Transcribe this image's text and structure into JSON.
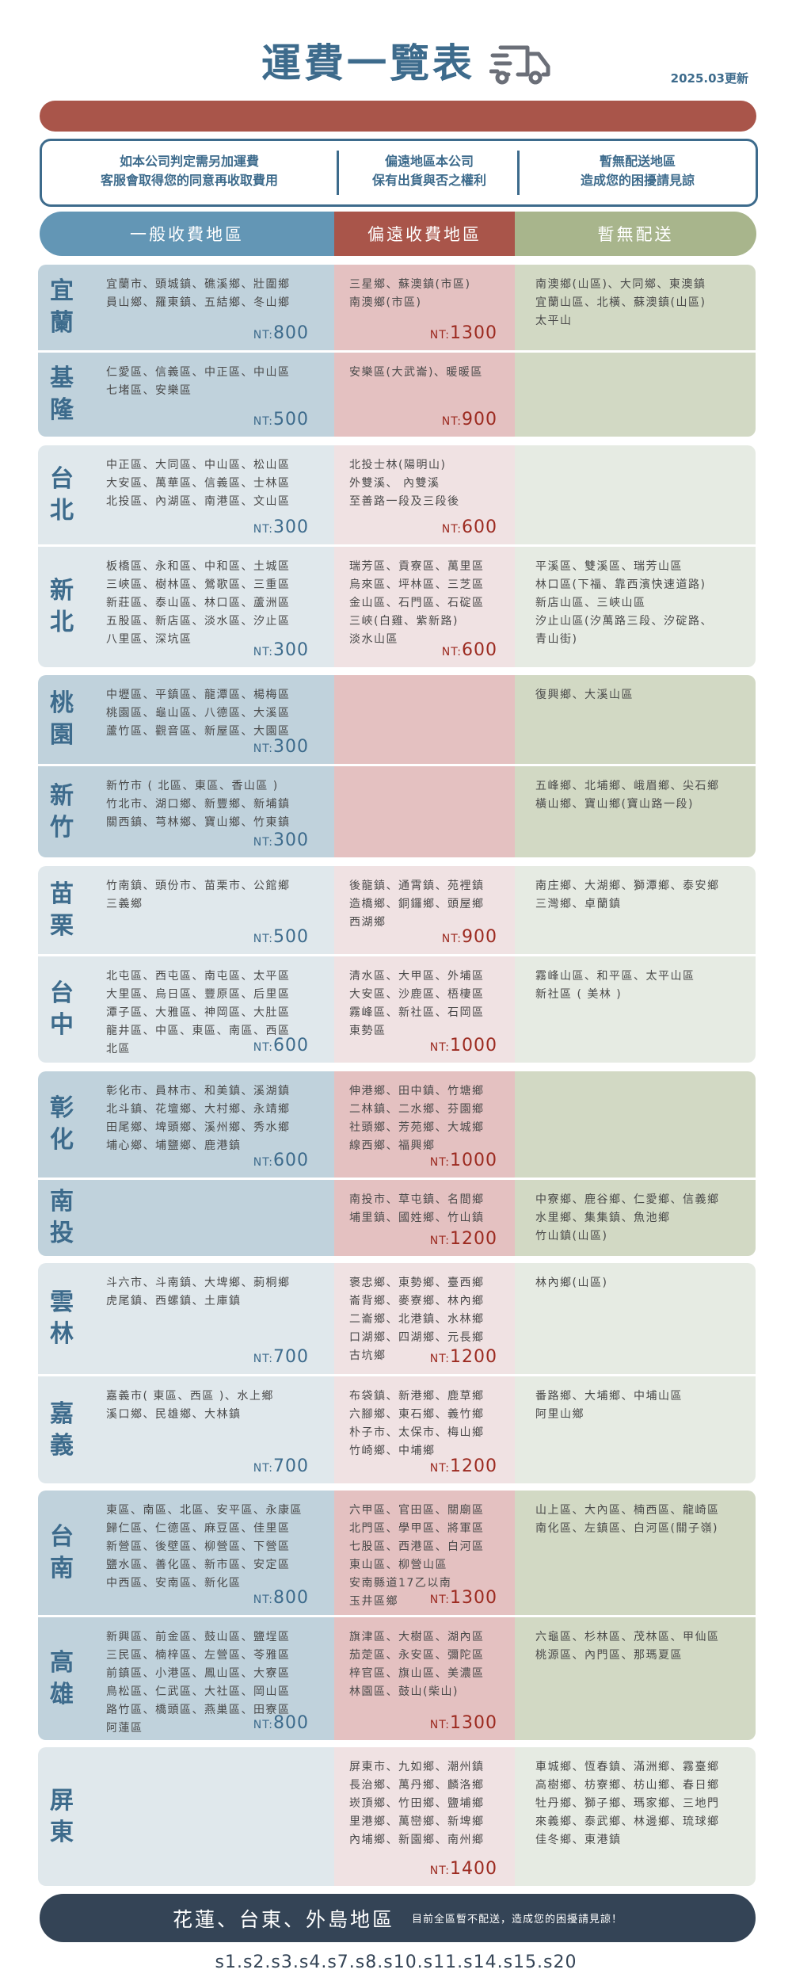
{
  "page": {
    "title": "運費一覽表",
    "truck_icon": "delivery-truck-icon",
    "updated": "2025.03更新"
  },
  "notices": [
    [
      "如本公司判定需另加運費",
      "客服會取得您的同意再收取費用"
    ],
    [
      "偏遠地區本公司",
      "保有出貨與否之權利"
    ],
    [
      "暫無配送地區",
      "造成您的困擾請見諒"
    ]
  ],
  "headers": {
    "general": "一般收費地區",
    "remote": "偏遠收費地區",
    "none": "暫無配送"
  },
  "currency_prefix": "NT:",
  "colors": {
    "title": "#3d6b8c",
    "accent_red": "#a9554a",
    "general": "#6396b5",
    "remote": "#a9554a",
    "none": "#a8b58c",
    "footer": "#344456"
  },
  "groups": [
    {
      "rows": [
        {
          "name": "宜蘭",
          "general": {
            "lines": [
              "宜蘭市、頭城鎮、礁溪鄉、壯圍鄉",
              "員山鄉、羅東鎮、五結鄉、冬山鄉"
            ],
            "price": "800"
          },
          "remote": {
            "lines": [
              "三星鄉、蘇澳鎮(市區)",
              "南澳鄉(市區)"
            ],
            "price": "1300"
          },
          "none": {
            "lines": [
              "南澳鄉(山區)、大同鄉、東澳鎮",
              "宜蘭山區、北橫、蘇澳鎮(山區)",
              "太平山"
            ]
          }
        },
        {
          "name": "基隆",
          "general": {
            "lines": [
              "仁愛區、信義區、中正區、中山區",
              "七堵區、安樂區"
            ],
            "price": "500"
          },
          "remote": {
            "lines": [
              "安樂區(大武崙)、暖暖區"
            ],
            "price": "900"
          },
          "none": {
            "lines": []
          }
        }
      ]
    },
    {
      "rows": [
        {
          "name": "台北",
          "general": {
            "lines": [
              "中正區、大同區、中山區、松山區",
              "大安區、萬華區、信義區、士林區",
              "北投區、內湖區、南港區、文山區"
            ],
            "price": "300"
          },
          "remote": {
            "lines": [
              "北投士林(陽明山)",
              "外雙溪、 內雙溪",
              "至善路一段及三段後"
            ],
            "price": "600"
          },
          "none": {
            "lines": []
          }
        },
        {
          "name": "新北",
          "general": {
            "lines": [
              "板橋區、永和區、中和區、土城區",
              "三峽區、樹林區、鶯歌區、三重區",
              "新莊區、泰山區、林口區、蘆洲區",
              "五股區、新店區、淡水區、汐止區",
              "八里區、深坑區"
            ],
            "price": "300"
          },
          "remote": {
            "lines": [
              "瑞芳區、貢寮區、萬里區",
              "烏來區、坪林區、三芝區",
              "金山區、石門區、石碇區",
              "三峽(白雞、紫新路)",
              "淡水山區"
            ],
            "price": "600"
          },
          "none": {
            "lines": [
              "平溪區、雙溪區、瑞芳山區",
              "林口區(下福、靠西濱快速道路)",
              "新店山區、三峽山區",
              "汐止山區(汐萬路三段、汐碇路、",
              "青山街)"
            ]
          }
        }
      ]
    },
    {
      "rows": [
        {
          "name": "桃園",
          "general": {
            "lines": [
              "中壢區、平鎮區、龍潭區、楊梅區",
              "桃園區、龜山區、八德區、大溪區",
              "蘆竹區、觀音區、新屋區、大園區"
            ],
            "price": "300"
          },
          "remote": {
            "lines": []
          },
          "none": {
            "lines": [
              "復興鄉、大溪山區"
            ]
          }
        },
        {
          "name": "新竹",
          "general": {
            "lines": [
              "新竹市 ( 北區、東區、香山區 )",
              "竹北市、湖口鄉、新豐鄉、新埔鎮",
              "關西鎮、芎林鄉、寶山鄉、竹東鎮"
            ],
            "price": "300"
          },
          "remote": {
            "lines": []
          },
          "none": {
            "lines": [
              "五峰鄉、北埔鄉、峨眉鄉、尖石鄉",
              "橫山鄉、寶山鄉(寶山路一段)"
            ]
          }
        }
      ]
    },
    {
      "rows": [
        {
          "name": "苗栗",
          "general": {
            "lines": [
              "竹南鎮、頭份市、苗栗市、公館鄉",
              "三義鄉"
            ],
            "price": "500"
          },
          "remote": {
            "lines": [
              "後龍鎮、通霄鎮、苑裡鎮",
              "造橋鄉、銅鑼鄉、頭屋鄉",
              "西湖鄉"
            ],
            "price": "900"
          },
          "none": {
            "lines": [
              "南庄鄉、大湖鄉、獅潭鄉、泰安鄉",
              "三灣鄉、卓蘭鎮"
            ]
          }
        },
        {
          "name": "台中",
          "general": {
            "lines": [
              "北屯區、西屯區、南屯區、太平區",
              "大里區、烏日區、豐原區、后里區",
              "潭子區、大雅區、神岡區、大肚區",
              "龍井區、中區、東區、南區、西區",
              "北區"
            ],
            "price": "600"
          },
          "remote": {
            "lines": [
              "清水區、大甲區、外埔區",
              "大安區、沙鹿區、梧棲區",
              "霧峰區、新社區、石岡區",
              "東勢區"
            ],
            "price": "1000"
          },
          "none": {
            "lines": [
              "霧峰山區、和平區、太平山區",
              "新社區 ( 美林 )"
            ]
          }
        }
      ]
    },
    {
      "rows": [
        {
          "name": "彰化",
          "general": {
            "lines": [
              "彰化市、員林市、和美鎮、溪湖鎮",
              "北斗鎮、花壇鄉、大村鄉、永靖鄉",
              "田尾鄉、埤頭鄉、溪州鄉、秀水鄉",
              "埔心鄉、埔鹽鄉、鹿港鎮"
            ],
            "price": "600"
          },
          "remote": {
            "lines": [
              "伸港鄉、田中鎮、竹塘鄉",
              "二林鎮、二水鄉、芬園鄉",
              "社頭鄉、芳苑鄉、大城鄉",
              "線西鄉、福興鄉"
            ],
            "price": "1000"
          },
          "none": {
            "lines": []
          }
        },
        {
          "name": "南投",
          "general": {
            "lines": []
          },
          "remote": {
            "lines": [
              "南投市、草屯鎮、名間鄉",
              "埔里鎮、國姓鄉、竹山鎮"
            ],
            "price": "1200"
          },
          "none": {
            "lines": [
              "中寮鄉、鹿谷鄉、仁愛鄉、信義鄉",
              "水里鄉、集集鎮、魚池鄉",
              "竹山鎮(山區)"
            ]
          }
        }
      ]
    },
    {
      "rows": [
        {
          "name": "雲林",
          "general": {
            "lines": [
              "斗六市、斗南鎮、大埤鄉、莿桐鄉",
              "虎尾鎮、西螺鎮、土庫鎮"
            ],
            "price": "700"
          },
          "remote": {
            "lines": [
              "褒忠鄉、東勢鄉、臺西鄉",
              "崙背鄉、麥寮鄉、林內鄉",
              "二崙鄉、北港鎮、水林鄉",
              "口湖鄉、四湖鄉、元長鄉",
              "古坑鄉"
            ],
            "price": "1200"
          },
          "none": {
            "lines": [
              "林內鄉(山區)"
            ]
          }
        },
        {
          "name": "嘉義",
          "general": {
            "lines": [
              "嘉義市( 東區、西區 )、水上鄉",
              "溪口鄉、民雄鄉、大林鎮"
            ],
            "price": "700"
          },
          "remote": {
            "lines": [
              "布袋鎮、新港鄉、鹿草鄉",
              "六腳鄉、東石鄉、義竹鄉",
              "朴子市、太保市、梅山鄉",
              "竹崎鄉、中埔鄉"
            ],
            "price": "1200"
          },
          "none": {
            "lines": [
              "番路鄉、大埔鄉、中埔山區",
              "阿里山鄉"
            ]
          }
        }
      ]
    },
    {
      "rows": [
        {
          "name": "台南",
          "general": {
            "lines": [
              "東區、南區、北區、安平區、永康區",
              "歸仁區、仁德區、麻豆區、佳里區",
              "新營區、後壁區、柳營區、下營區",
              "鹽水區、善化區、新市區、安定區",
              "中西區、安南區、新化區"
            ],
            "price": "800"
          },
          "remote": {
            "lines": [
              "六甲區、官田區、關廟區",
              "北門區、學甲區、將軍區",
              "七股區、西港區、白河區",
              "東山區、柳營山區",
              "安南縣道17乙以南",
              "玉井區鄉"
            ],
            "price": "1300"
          },
          "none": {
            "lines": [
              "山上區、大內區、楠西區、龍崎區",
              "南化區、左鎮區、白河區(關子嶺)"
            ]
          }
        },
        {
          "name": "高雄",
          "general": {
            "lines": [
              "新興區、前金區、鼓山區、鹽埕區",
              "三民區、楠梓區、左營區、苓雅區",
              "前鎮區、小港區、鳳山區、大寮區",
              "鳥松區、仁武區、大社區、岡山區",
              "路竹區、橋頭區、燕巢區、田寮區",
              "阿蓮區"
            ],
            "price": "800"
          },
          "remote": {
            "lines": [
              "旗津區、大樹區、湖內區",
              "茄萣區、永安區、彌陀區",
              "梓官區、旗山區、美濃區",
              "林園區、鼓山(柴山)"
            ],
            "price": "1300"
          },
          "none": {
            "lines": [
              "六龜區、杉林區、茂林區、甲仙區",
              "桃源區、內門區、那瑪夏區"
            ]
          }
        }
      ]
    },
    {
      "rows": [
        {
          "name": "屏東",
          "general": {
            "lines": []
          },
          "remote": {
            "lines": [
              "屏東市、九如鄉、潮州鎮",
              "長治鄉、萬丹鄉、麟洛鄉",
              "崁頂鄉、竹田鄉、鹽埔鄉",
              "里港鄉、萬巒鄉、新埤鄉",
              "內埔鄉、新園鄉、南州鄉"
            ],
            "price": "1400"
          },
          "none": {
            "lines": [
              "車城鄉、恆春鎮、滿洲鄉、霧臺鄉",
              "高樹鄉、枋寮鄉、枋山鄉、春日鄉",
              "牡丹鄉、獅子鄉、瑪家鄉、三地門",
              "來義鄉、泰武鄉、林邊鄉、琉球鄉",
              "佳冬鄉、東港鎮"
            ]
          }
        }
      ]
    }
  ],
  "footer": {
    "main": "花蓮、台東、外島地區",
    "sub": "目前全區暫不配送，造成您的困擾請見諒！",
    "codes": "s1.s2.s3.s4.s7.s8.s10.s11.s14.s15.s20"
  }
}
